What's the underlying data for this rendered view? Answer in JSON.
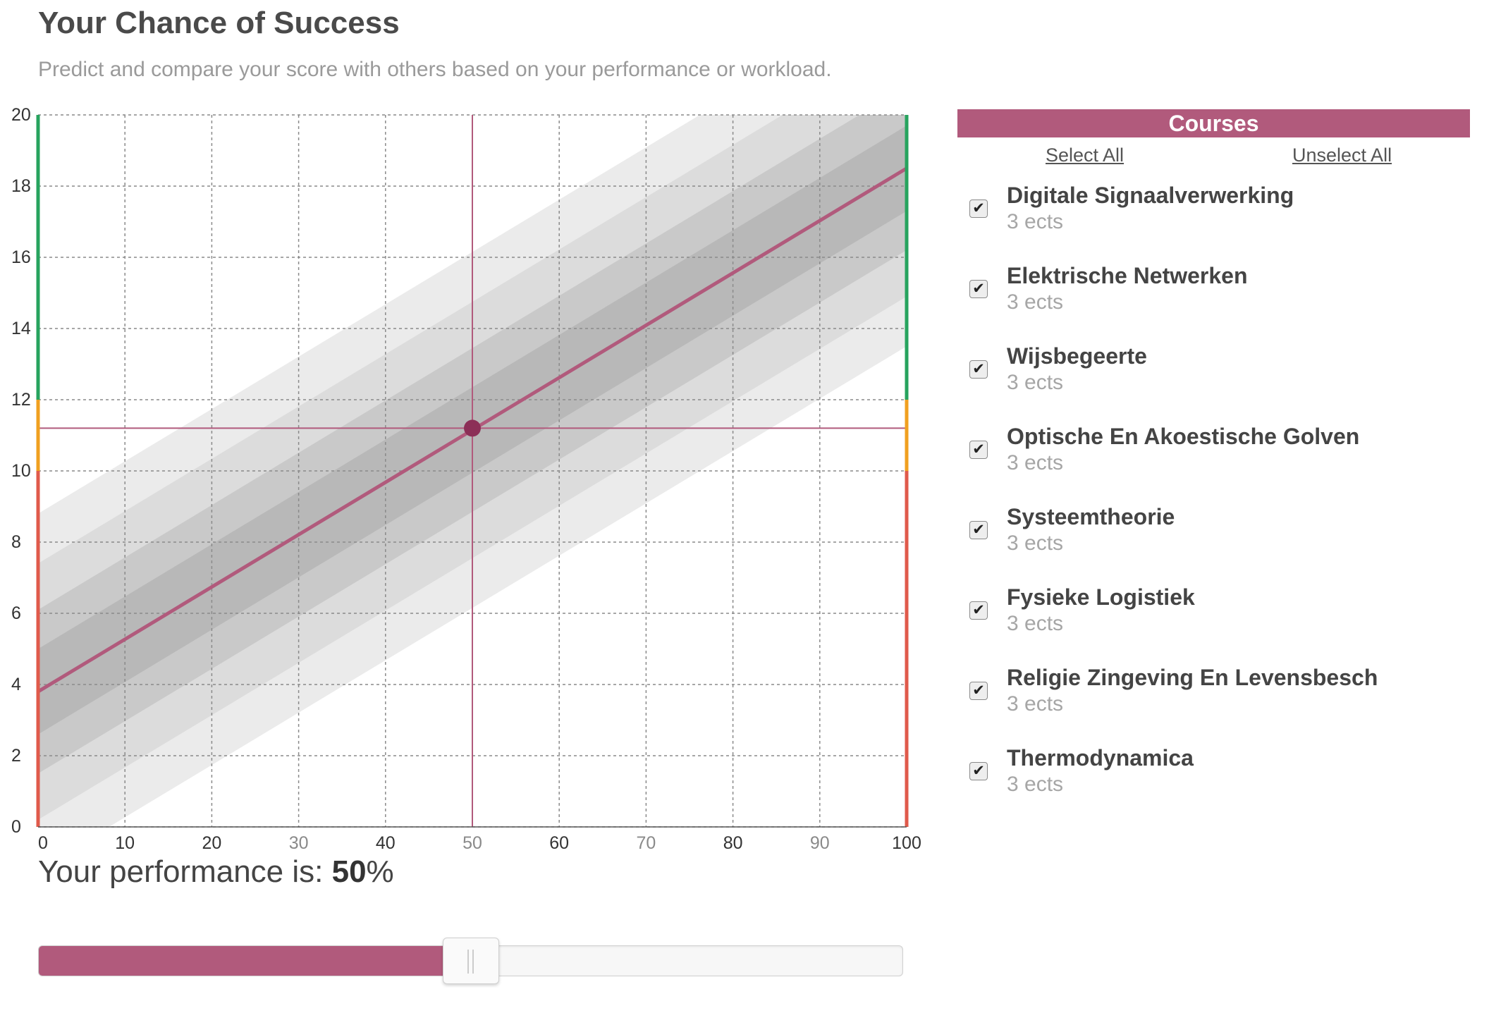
{
  "header": {
    "title": "Your Chance of Success",
    "subtitle": "Predict and compare your score with others based on your performance or workload."
  },
  "colors": {
    "accent": "#b15a7c",
    "marker": "#8c2f57",
    "zone_pass": "#27a35e",
    "zone_borderline": "#f0a020",
    "zone_fail": "#e05a4b"
  },
  "chart_data": {
    "type": "area",
    "title": "",
    "xlabel": "",
    "ylabel": "",
    "xlim": [
      0,
      100
    ],
    "ylim": [
      0,
      20
    ],
    "x_ticks": [
      "0",
      "10",
      "20",
      "30",
      "40",
      "50",
      "60",
      "70",
      "80",
      "90",
      "100"
    ],
    "y_ticks": [
      "0",
      "2",
      "4",
      "6",
      "8",
      "10",
      "12",
      "14",
      "16",
      "18",
      "20"
    ],
    "grid": true,
    "prediction_line": {
      "x": [
        0,
        100
      ],
      "y": [
        3.8,
        18.5
      ]
    },
    "confidence_bands": [
      {
        "lower": [
          -1.2,
          13.5
        ],
        "upper": [
          8.8,
          23.5
        ]
      },
      {
        "lower": [
          0.2,
          14.9
        ],
        "upper": [
          7.4,
          22.1
        ]
      },
      {
        "lower": [
          1.5,
          16.2
        ],
        "upper": [
          6.1,
          20.8
        ]
      },
      {
        "lower": [
          2.6,
          17.3
        ],
        "upper": [
          5.0,
          19.7
        ]
      }
    ],
    "selected_point": {
      "x": 50,
      "y": 11.2
    },
    "zones": [
      {
        "from": 0,
        "to": 10,
        "color": "#e05a4b"
      },
      {
        "from": 10,
        "to": 12,
        "color": "#f0a020"
      },
      {
        "from": 12,
        "to": 20,
        "color": "#27a35e"
      }
    ]
  },
  "performance": {
    "label": "Your performance is: ",
    "value": "50",
    "unit": "%",
    "fraction": 0.5
  },
  "courses": {
    "header": "Courses",
    "select_all": "Select All",
    "unselect_all": "Unselect All",
    "check_glyph": "✔",
    "items": [
      {
        "name": "Digitale Signaalverwerking",
        "credits": "3 ects",
        "checked": true
      },
      {
        "name": "Elektrische Netwerken",
        "credits": "3 ects",
        "checked": true
      },
      {
        "name": "Wijsbegeerte",
        "credits": "3 ects",
        "checked": true
      },
      {
        "name": "Optische En Akoestische Golven",
        "credits": "3 ects",
        "checked": true
      },
      {
        "name": "Systeemtheorie",
        "credits": "3 ects",
        "checked": true
      },
      {
        "name": "Fysieke Logistiek",
        "credits": "3 ects",
        "checked": true
      },
      {
        "name": "Religie Zingeving En Levensbesch",
        "credits": "3 ects",
        "checked": true
      },
      {
        "name": "Thermodynamica",
        "credits": "3 ects",
        "checked": true
      }
    ]
  }
}
